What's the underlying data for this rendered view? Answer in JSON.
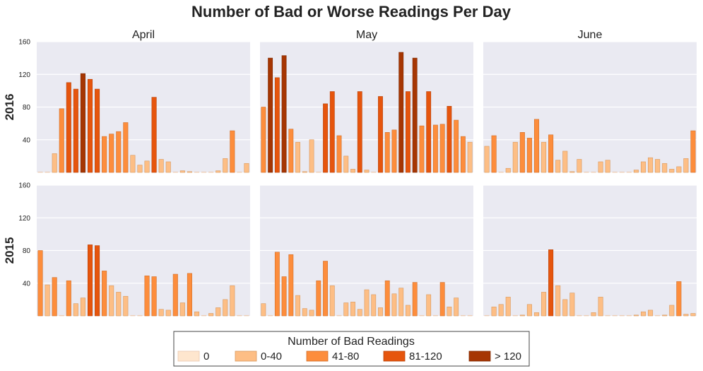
{
  "chart_data": {
    "type": "bar",
    "title": "Number of Bad or Worse Readings Per Day",
    "columns": [
      "April",
      "May",
      "June"
    ],
    "rows": [
      "2016",
      "2015"
    ],
    "ylim": [
      0,
      160
    ],
    "yticks": [
      40,
      80,
      120,
      160
    ],
    "grid": true,
    "legend": {
      "title": "Number of Bad Readings",
      "placement": "bottom-center",
      "entries": [
        {
          "label": "0",
          "color": "#fee6ce"
        },
        {
          "label": "0-40",
          "color": "#fdbe85"
        },
        {
          "label": "41-80",
          "color": "#fd8d3c"
        },
        {
          "label": "81-120",
          "color": "#e6550d"
        },
        {
          "label": "> 120",
          "color": "#a63603"
        }
      ]
    },
    "panels": [
      {
        "row": "2016",
        "month": "April",
        "values": [
          0,
          0,
          23,
          78,
          110,
          102,
          121,
          114,
          102,
          44,
          47,
          50,
          61,
          21,
          9,
          14,
          92,
          16,
          13,
          0,
          2,
          1,
          0,
          0,
          0,
          2,
          17,
          51,
          0,
          11
        ]
      },
      {
        "row": "2016",
        "month": "May",
        "values": [
          80,
          140,
          116,
          143,
          53,
          37,
          1,
          40,
          0,
          84,
          99,
          45,
          20,
          4,
          99,
          3,
          0,
          93,
          49,
          52,
          147,
          99,
          140,
          57,
          99,
          58,
          59,
          81,
          64,
          44,
          37
        ]
      },
      {
        "row": "2016",
        "month": "June",
        "values": [
          32,
          45,
          0,
          5,
          37,
          49,
          42,
          65,
          37,
          46,
          15,
          26,
          1,
          16,
          0,
          0,
          13,
          15,
          0,
          0,
          0,
          3,
          13,
          18,
          16,
          11,
          4,
          7,
          17,
          51
        ]
      },
      {
        "row": "2015",
        "month": "April",
        "values": [
          80,
          38,
          47,
          0,
          43,
          15,
          22,
          87,
          86,
          55,
          37,
          29,
          24,
          0,
          0,
          49,
          48,
          8,
          7,
          51,
          16,
          52,
          5,
          0,
          3,
          10,
          20,
          37,
          0,
          0
        ]
      },
      {
        "row": "2015",
        "month": "May",
        "values": [
          15,
          0,
          78,
          48,
          75,
          25,
          9,
          7,
          43,
          67,
          37,
          0,
          16,
          17,
          8,
          32,
          26,
          10,
          43,
          27,
          34,
          13,
          41,
          0,
          26,
          0,
          41,
          11,
          22,
          0,
          0
        ]
      },
      {
        "row": "2015",
        "month": "June",
        "values": [
          0,
          11,
          14,
          23,
          0,
          1,
          14,
          4,
          29,
          81,
          37,
          20,
          28,
          0,
          0,
          4,
          23,
          0,
          0,
          0,
          0,
          1,
          5,
          7,
          0,
          1,
          13,
          42,
          2,
          3
        ]
      }
    ]
  }
}
